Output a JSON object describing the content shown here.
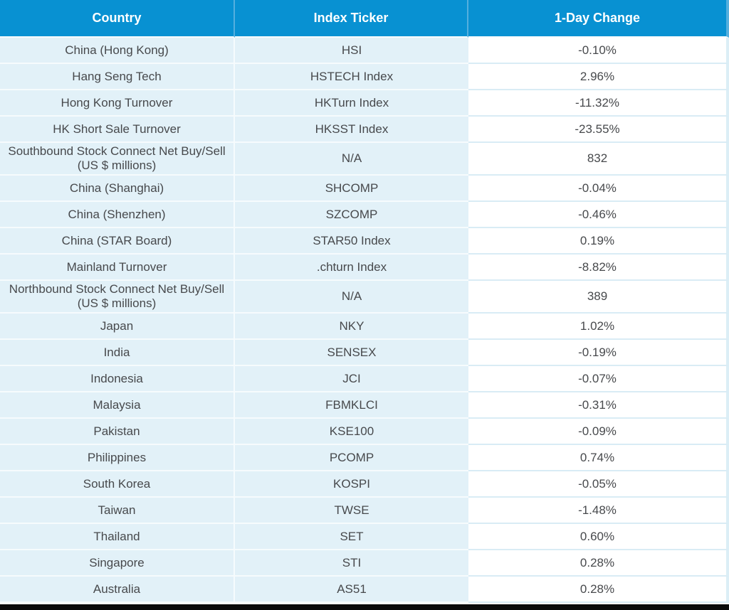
{
  "table": {
    "columns": [
      {
        "label": "Country"
      },
      {
        "label": "Index Ticker"
      },
      {
        "label": "1-Day Change"
      }
    ],
    "rows": [
      {
        "country": "China (Hong Kong)",
        "ticker": "HSI",
        "change": "-0.10%"
      },
      {
        "country": "Hang Seng Tech",
        "ticker": "HSTECH Index",
        "change": "2.96%"
      },
      {
        "country": "Hong Kong Turnover",
        "ticker": "HKTurn Index",
        "change": "-11.32%"
      },
      {
        "country": "HK Short Sale Turnover",
        "ticker": "HKSST Index",
        "change": "-23.55%"
      },
      {
        "country": "Southbound Stock Connect Net Buy/Sell (US $ millions)",
        "ticker": "N/A",
        "change": "832"
      },
      {
        "country": "China (Shanghai)",
        "ticker": "SHCOMP",
        "change": "-0.04%"
      },
      {
        "country": "China (Shenzhen)",
        "ticker": "SZCOMP",
        "change": "-0.46%"
      },
      {
        "country": "China (STAR Board)",
        "ticker": "STAR50 Index",
        "change": "0.19%"
      },
      {
        "country": "Mainland Turnover",
        "ticker": ".chturn Index",
        "change": "-8.82%"
      },
      {
        "country": "Northbound Stock Connect Net Buy/Sell (US $ millions)",
        "ticker": "N/A",
        "change": "389"
      },
      {
        "country": "Japan",
        "ticker": "NKY",
        "change": "1.02%"
      },
      {
        "country": "India",
        "ticker": "SENSEX",
        "change": "-0.19%"
      },
      {
        "country": "Indonesia",
        "ticker": "JCI",
        "change": "-0.07%"
      },
      {
        "country": "Malaysia",
        "ticker": "FBMKLCI",
        "change": "-0.31%"
      },
      {
        "country": "Pakistan",
        "ticker": "KSE100",
        "change": "-0.09%"
      },
      {
        "country": "Philippines",
        "ticker": "PCOMP",
        "change": "0.74%"
      },
      {
        "country": "South Korea",
        "ticker": "KOSPI",
        "change": "-0.05%"
      },
      {
        "country": "Taiwan",
        "ticker": "TWSE",
        "change": "-1.48%"
      },
      {
        "country": "Thailand",
        "ticker": "SET",
        "change": "0.60%"
      },
      {
        "country": "Singapore",
        "ticker": "STI",
        "change": "0.28%"
      },
      {
        "country": "Australia",
        "ticker": "AS51",
        "change": "0.28%"
      }
    ]
  },
  "colors": {
    "header_bg": "#0891D2",
    "header_sep": "#54AFDE",
    "cell_bg": "#E2F1F8",
    "sep_light": "#F6FBFD",
    "sep_blue": "#D9ECF5",
    "right_strip": "#DCEEF6",
    "text_dark": "#47494C",
    "text_header": "#FFFFFF",
    "bottom_bar": "#0A0A0A"
  }
}
